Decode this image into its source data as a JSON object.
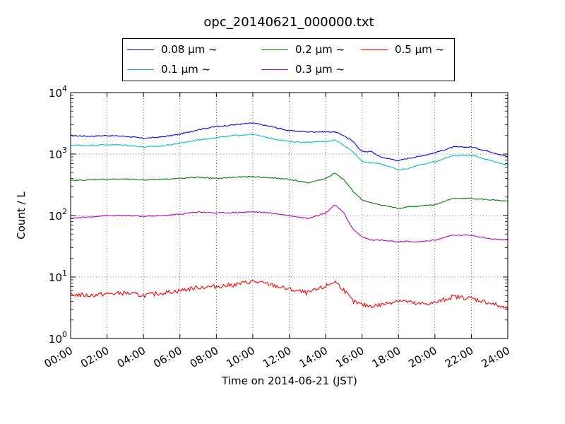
{
  "chart_data": {
    "type": "line",
    "title": "opc_20140621_000000.txt",
    "xlabel": "Time on 2014-06-21 (JST)",
    "ylabel": "Count / L",
    "y_scale": "log",
    "xlim": [
      "00:00",
      "24:00"
    ],
    "ylim": [
      1,
      10000
    ],
    "grid": true,
    "legend_position": "top-center",
    "x_ticks": [
      "00:00",
      "02:00",
      "04:00",
      "06:00",
      "08:00",
      "10:00",
      "12:00",
      "14:00",
      "16:00",
      "18:00",
      "20:00",
      "22:00",
      "24:00"
    ],
    "y_ticks": [
      {
        "value": 1,
        "label": "10",
        "exp": "0"
      },
      {
        "value": 10,
        "label": "10",
        "exp": "1"
      },
      {
        "value": 100,
        "label": "10",
        "exp": "2"
      },
      {
        "value": 1000,
        "label": "10",
        "exp": "3"
      },
      {
        "value": 10000,
        "label": "10",
        "exp": "4"
      }
    ],
    "x": [
      "00:00",
      "01:00",
      "02:00",
      "03:00",
      "04:00",
      "05:00",
      "06:00",
      "07:00",
      "08:00",
      "09:00",
      "10:00",
      "11:00",
      "12:00",
      "13:00",
      "14:00",
      "14:30",
      "15:00",
      "15:30",
      "16:00",
      "16:30",
      "17:00",
      "18:00",
      "18:30",
      "19:00",
      "20:00",
      "21:00",
      "22:00",
      "23:00",
      "24:00"
    ],
    "series": [
      {
        "name": "0.08 μm ~",
        "color": "#0000ff",
        "values": [
          2000,
          1950,
          2000,
          1950,
          1800,
          1900,
          2100,
          2500,
          2800,
          3000,
          3200,
          2800,
          2400,
          2300,
          2300,
          2300,
          2000,
          1600,
          1100,
          1100,
          900,
          780,
          850,
          900,
          1050,
          1300,
          1300,
          1100,
          900
        ]
      },
      {
        "name": "0.1 μm ~",
        "color": "#00bfbf",
        "values": [
          1400,
          1380,
          1420,
          1400,
          1300,
          1350,
          1500,
          1700,
          1850,
          2000,
          2100,
          1800,
          1600,
          1550,
          1600,
          1700,
          1400,
          1100,
          750,
          720,
          700,
          550,
          580,
          650,
          750,
          950,
          950,
          800,
          650
        ]
      },
      {
        "name": "0.2 μm ~",
        "color": "#008000",
        "values": [
          370,
          380,
          390,
          390,
          380,
          390,
          400,
          420,
          400,
          420,
          430,
          410,
          390,
          340,
          400,
          490,
          380,
          250,
          180,
          160,
          150,
          130,
          140,
          140,
          150,
          190,
          190,
          180,
          170
        ]
      },
      {
        "name": "0.3 μm ~",
        "color": "#bf00bf",
        "values": [
          90,
          95,
          100,
          100,
          97,
          100,
          105,
          115,
          110,
          112,
          115,
          110,
          100,
          90,
          110,
          150,
          110,
          60,
          45,
          40,
          40,
          37,
          38,
          37,
          40,
          48,
          48,
          42,
          40
        ]
      },
      {
        "name": "0.5 μm ~",
        "color": "#ff0000",
        "values": [
          5.2,
          5.0,
          5.3,
          5.5,
          5.0,
          5.5,
          6.0,
          6.8,
          7.0,
          7.5,
          8.5,
          7.5,
          6.3,
          5.5,
          7.0,
          8.5,
          6.2,
          4.0,
          3.5,
          3.4,
          3.5,
          4.2,
          4.0,
          3.6,
          3.8,
          4.8,
          4.5,
          3.8,
          3.0
        ]
      }
    ]
  }
}
